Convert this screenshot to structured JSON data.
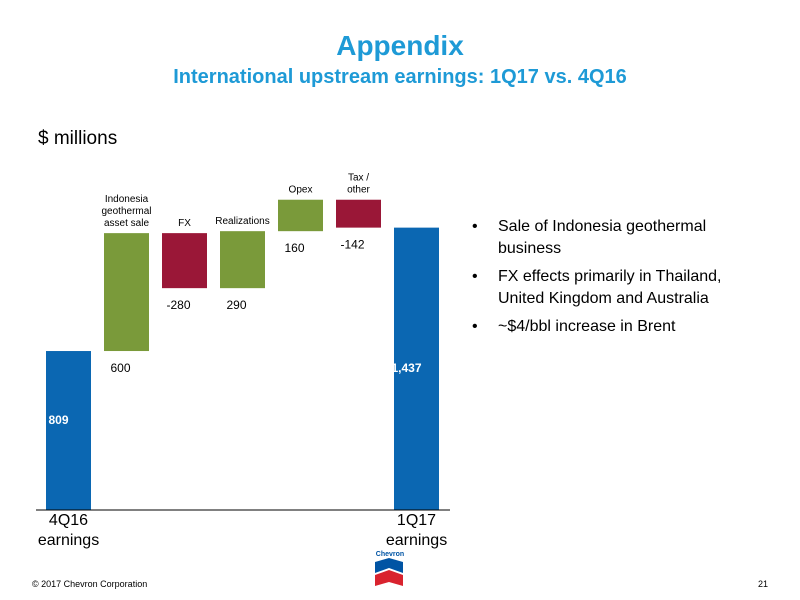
{
  "header": {
    "title": "Appendix",
    "subtitle": "International upstream earnings: 1Q17 vs. 4Q16"
  },
  "units_label": "$ millions",
  "colors": {
    "blue": "#0b67b2",
    "green": "#7a9a3a",
    "red": "#9a1737",
    "title": "#1e9ad6"
  },
  "chart_data": {
    "type": "bar",
    "subtype": "waterfall",
    "categories": [
      [
        "4Q16",
        "earnings"
      ],
      [
        "Indonesia",
        "geothermal",
        "asset sale"
      ],
      [
        "FX"
      ],
      [
        "Realizations"
      ],
      [
        "Opex"
      ],
      [
        "Tax /",
        "other"
      ],
      [
        "1Q17",
        "earnings"
      ]
    ],
    "values": [
      809,
      600,
      -280,
      290,
      160,
      -142,
      1437
    ],
    "value_labels": [
      "809",
      "600",
      "-280",
      "290",
      "160",
      "-142",
      "1,437"
    ],
    "kinds": [
      "total",
      "delta",
      "delta",
      "delta",
      "delta",
      "delta",
      "total"
    ],
    "colors": [
      "#0b67b2",
      "#7a9a3a",
      "#9a1737",
      "#7a9a3a",
      "#7a9a3a",
      "#9a1737",
      "#0b67b2"
    ],
    "ylabel": "$ millions",
    "ylim": [
      0,
      1700
    ],
    "grid": false,
    "legend": "none"
  },
  "bullets": [
    "Sale of Indonesia geothermal business",
    "FX effects primarily in Thailand, United Kingdom and Australia",
    "~$4/bbl increase in Brent"
  ],
  "bullet_glyph": "•",
  "footer": {
    "copyright": "© 2017 Chevron Corporation",
    "page_number": "21",
    "logo_text": "Chevron"
  }
}
